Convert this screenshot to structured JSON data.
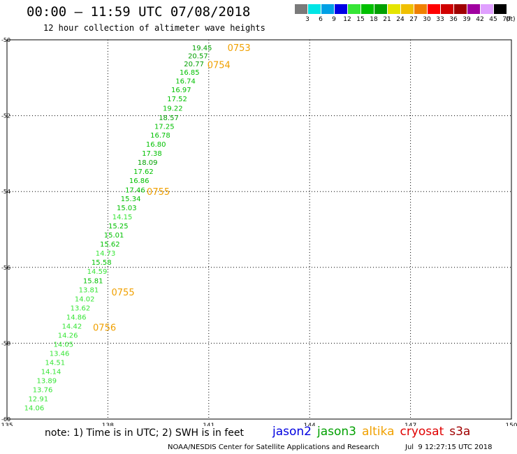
{
  "header": {
    "title": "00:00 – 11:59 UTC 07/08/2018",
    "subtitle": "12 hour collection of altimeter wave heights"
  },
  "color_scale": {
    "unit": "(ft)",
    "levels": [
      {
        "label": "3",
        "color": "#7a7a7a"
      },
      {
        "label": "6",
        "color": "#00e5e5"
      },
      {
        "label": "9",
        "color": "#00a0e5"
      },
      {
        "label": "12",
        "color": "#0000e5"
      },
      {
        "label": "15",
        "color": "#36e536"
      },
      {
        "label": "18",
        "color": "#00c000"
      },
      {
        "label": "21",
        "color": "#00a000"
      },
      {
        "label": "24",
        "color": "#e5e500"
      },
      {
        "label": "27",
        "color": "#f0c000"
      },
      {
        "label": "30",
        "color": "#f08000"
      },
      {
        "label": "33",
        "color": "#ff0000"
      },
      {
        "label": "36",
        "color": "#d00000"
      },
      {
        "label": "39",
        "color": "#a00000"
      },
      {
        "label": "42",
        "color": "#a000a0"
      },
      {
        "label": "45",
        "color": "#e0a0ff"
      },
      {
        "label": "70",
        "color": "#000000"
      }
    ]
  },
  "chart_data": {
    "type": "scatter",
    "xlim": [
      135,
      150
    ],
    "ylim": [
      -60,
      -50
    ],
    "x_ticks": [
      "135",
      "138",
      "141",
      "144",
      "147",
      "150"
    ],
    "y_ticks": [
      "-50",
      "-52",
      "-54",
      "-56",
      "-58",
      "-60"
    ],
    "x_tick_values": [
      135,
      138,
      141,
      144,
      147,
      150
    ],
    "y_tick_values": [
      -50,
      -52,
      -54,
      -56,
      -58,
      -60
    ],
    "grid": true,
    "points": [
      {
        "lon": 140.8,
        "lat": -50.2,
        "label": "19.45",
        "color": "#00a000"
      },
      {
        "lon": 140.68,
        "lat": -50.41,
        "label": "20.57",
        "color": "#00a000"
      },
      {
        "lon": 140.56,
        "lat": -50.63,
        "label": "20.77",
        "color": "#00a000"
      },
      {
        "lon": 140.43,
        "lat": -50.85,
        "label": "16.85",
        "color": "#00c000"
      },
      {
        "lon": 140.31,
        "lat": -51.08,
        "label": "16.74",
        "color": "#00c000"
      },
      {
        "lon": 140.18,
        "lat": -51.31,
        "label": "16.97",
        "color": "#00c000"
      },
      {
        "lon": 140.06,
        "lat": -51.55,
        "label": "17.52",
        "color": "#00c000"
      },
      {
        "lon": 139.93,
        "lat": -51.8,
        "label": "19.22",
        "color": "#00c000"
      },
      {
        "lon": 139.81,
        "lat": -52.04,
        "label": "18.57",
        "color": "#00a000"
      },
      {
        "lon": 139.68,
        "lat": -52.27,
        "label": "17.25",
        "color": "#00c000"
      },
      {
        "lon": 139.56,
        "lat": -52.5,
        "label": "16.78",
        "color": "#00c000"
      },
      {
        "lon": 139.43,
        "lat": -52.74,
        "label": "16.80",
        "color": "#00c000"
      },
      {
        "lon": 139.31,
        "lat": -52.98,
        "label": "17.38",
        "color": "#00c000"
      },
      {
        "lon": 139.18,
        "lat": -53.22,
        "label": "18.09",
        "color": "#00a000"
      },
      {
        "lon": 139.06,
        "lat": -53.46,
        "label": "17.62",
        "color": "#00c000"
      },
      {
        "lon": 138.93,
        "lat": -53.7,
        "label": "16.86",
        "color": "#00c000"
      },
      {
        "lon": 138.81,
        "lat": -53.95,
        "label": "17.46",
        "color": "#00c000"
      },
      {
        "lon": 138.68,
        "lat": -54.18,
        "label": "15.34",
        "color": "#00c000"
      },
      {
        "lon": 138.56,
        "lat": -54.42,
        "label": "15.03",
        "color": "#00c000"
      },
      {
        "lon": 138.43,
        "lat": -54.66,
        "label": "14.15",
        "color": "#36e536"
      },
      {
        "lon": 138.31,
        "lat": -54.9,
        "label": "15.25",
        "color": "#00c000"
      },
      {
        "lon": 138.18,
        "lat": -55.14,
        "label": "15.01",
        "color": "#00c000"
      },
      {
        "lon": 138.06,
        "lat": -55.38,
        "label": "15.62",
        "color": "#00c000"
      },
      {
        "lon": 137.93,
        "lat": -55.62,
        "label": "14.73",
        "color": "#36e536"
      },
      {
        "lon": 137.81,
        "lat": -55.86,
        "label": "15.58",
        "color": "#00c000"
      },
      {
        "lon": 137.68,
        "lat": -56.1,
        "label": "14.59",
        "color": "#36e536"
      },
      {
        "lon": 137.56,
        "lat": -56.34,
        "label": "15.81",
        "color": "#00c000"
      },
      {
        "lon": 137.43,
        "lat": -56.58,
        "label": "13.81",
        "color": "#36e536"
      },
      {
        "lon": 137.31,
        "lat": -56.82,
        "label": "14.02",
        "color": "#36e536"
      },
      {
        "lon": 137.18,
        "lat": -57.06,
        "label": "13.62",
        "color": "#36e536"
      },
      {
        "lon": 137.06,
        "lat": -57.3,
        "label": "14.86",
        "color": "#36e536"
      },
      {
        "lon": 136.93,
        "lat": -57.54,
        "label": "14.42",
        "color": "#36e536"
      },
      {
        "lon": 136.81,
        "lat": -57.78,
        "label": "14.26",
        "color": "#36e536"
      },
      {
        "lon": 136.68,
        "lat": -58.02,
        "label": "14.05",
        "color": "#36e536"
      },
      {
        "lon": 136.56,
        "lat": -58.26,
        "label": "13.46",
        "color": "#36e536"
      },
      {
        "lon": 136.43,
        "lat": -58.5,
        "label": "14.51",
        "color": "#36e536"
      },
      {
        "lon": 136.31,
        "lat": -58.74,
        "label": "14.14",
        "color": "#36e536"
      },
      {
        "lon": 136.18,
        "lat": -58.98,
        "label": "13.89",
        "color": "#36e536"
      },
      {
        "lon": 136.06,
        "lat": -59.22,
        "label": "13.76",
        "color": "#36e536"
      },
      {
        "lon": 135.93,
        "lat": -59.46,
        "label": "12.91",
        "color": "#36e536"
      },
      {
        "lon": 135.81,
        "lat": -59.7,
        "label": "14.06",
        "color": "#36e536"
      }
    ],
    "time_labels": [
      {
        "lon": 141.9,
        "lat": -50.2,
        "label": "0753",
        "color": "#f0a000"
      },
      {
        "lon": 141.3,
        "lat": -50.65,
        "label": "0754",
        "color": "#f0a000"
      },
      {
        "lon": 139.5,
        "lat": -54.0,
        "label": "0755",
        "color": "#f0a000"
      },
      {
        "lon": 138.45,
        "lat": -56.65,
        "label": "0755",
        "color": "#f0a000"
      },
      {
        "lon": 137.9,
        "lat": -57.58,
        "label": "0756",
        "color": "#f0a000"
      }
    ]
  },
  "footer": {
    "note": "note: 1) Time is in UTC; 2) SWH is in feet",
    "satellites": [
      {
        "name": "jason2",
        "color": "#0000e0"
      },
      {
        "name": "jason3",
        "color": "#00a000"
      },
      {
        "name": "altika",
        "color": "#f0a000"
      },
      {
        "name": "cryosat",
        "color": "#e00000"
      },
      {
        "name": "s3a",
        "color": "#a00000"
      }
    ],
    "credit": "NOAA/NESDIS Center for Satellite Applications and Research",
    "generated": "Jul  9 12:27:15 UTC 2018"
  }
}
